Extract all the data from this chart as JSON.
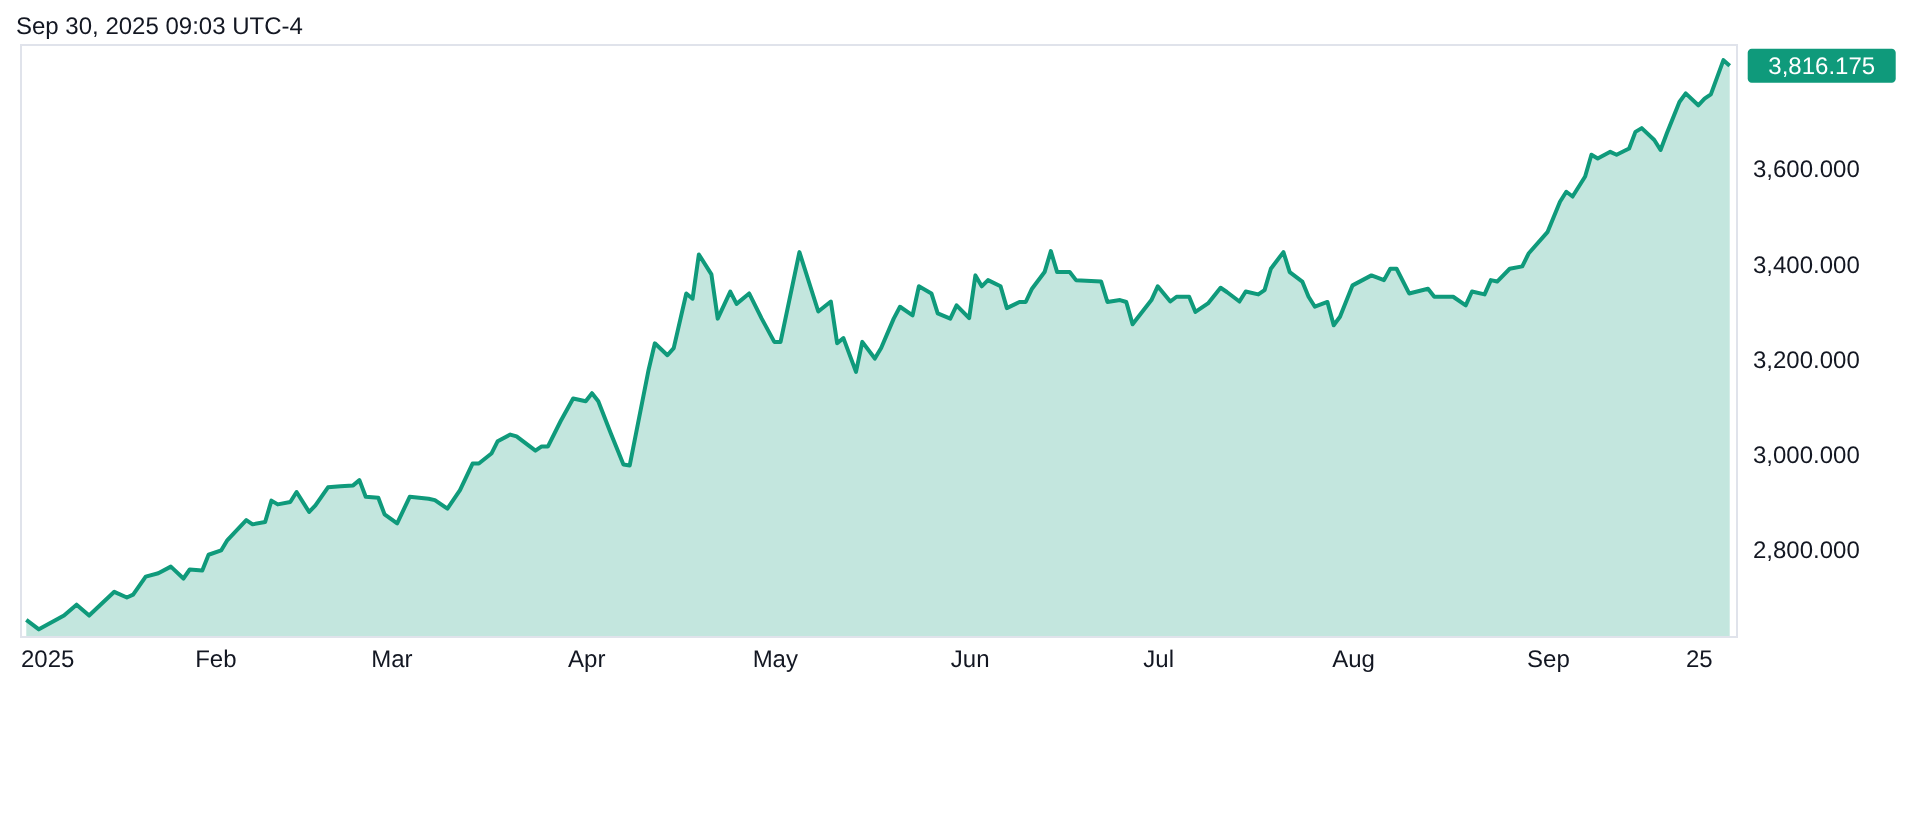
{
  "chart_data": {
    "type": "area",
    "annotations": [
      "Sep 30, 2025 09:03 UTC-4",
      {
        "text": "3,816.175",
        "x": "2025-09-30",
        "y": 3816.175
      }
    ],
    "x": [
      "2025-01-02",
      "2025-01-04",
      "2025-01-08",
      "2025-01-10",
      "2025-01-12",
      "2025-01-16",
      "2025-01-18",
      "2025-01-19",
      "2025-01-21",
      "2025-01-23",
      "2025-01-25",
      "2025-01-27",
      "2025-01-28",
      "2025-01-30",
      "2025-01-31",
      "2025-02-02",
      "2025-02-03",
      "2025-02-06",
      "2025-02-07",
      "2025-02-09",
      "2025-02-10",
      "2025-02-11",
      "2025-02-13",
      "2025-02-14",
      "2025-02-16",
      "2025-02-17",
      "2025-02-19",
      "2025-02-21",
      "2025-02-23",
      "2025-02-24",
      "2025-02-25",
      "2025-02-27",
      "2025-02-28",
      "2025-03-02",
      "2025-03-04",
      "2025-03-07",
      "2025-03-08",
      "2025-03-10",
      "2025-03-12",
      "2025-03-14",
      "2025-03-15",
      "2025-03-17",
      "2025-03-18",
      "2025-03-20",
      "2025-03-21",
      "2025-03-24",
      "2025-03-25",
      "2025-03-26",
      "2025-03-28",
      "2025-03-30",
      "2025-04-01",
      "2025-04-02",
      "2025-04-03",
      "2025-04-05",
      "2025-04-07",
      "2025-04-08",
      "2025-04-11",
      "2025-04-12",
      "2025-04-14",
      "2025-04-15",
      "2025-04-17",
      "2025-04-18",
      "2025-04-19",
      "2025-04-21",
      "2025-04-22",
      "2025-04-24",
      "2025-04-25",
      "2025-04-27",
      "2025-04-29",
      "2025-05-01",
      "2025-05-02",
      "2025-05-05",
      "2025-05-08",
      "2025-05-10",
      "2025-05-11",
      "2025-05-12",
      "2025-05-14",
      "2025-05-15",
      "2025-05-17",
      "2025-05-18",
      "2025-05-20",
      "2025-05-21",
      "2025-05-23",
      "2025-05-24",
      "2025-05-26",
      "2025-05-27",
      "2025-05-29",
      "2025-05-30",
      "2025-06-01",
      "2025-06-02",
      "2025-06-03",
      "2025-06-04",
      "2025-06-06",
      "2025-06-07",
      "2025-06-09",
      "2025-06-10",
      "2025-06-11",
      "2025-06-13",
      "2025-06-14",
      "2025-06-15",
      "2025-06-17",
      "2025-06-18",
      "2025-06-22",
      "2025-06-23",
      "2025-06-25",
      "2025-06-26",
      "2025-06-27",
      "2025-06-30",
      "2025-07-01",
      "2025-07-03",
      "2025-07-04",
      "2025-07-06",
      "2025-07-07",
      "2025-07-09",
      "2025-07-11",
      "2025-07-12",
      "2025-07-14",
      "2025-07-15",
      "2025-07-17",
      "2025-07-18",
      "2025-07-19",
      "2025-07-21",
      "2025-07-22",
      "2025-07-24",
      "2025-07-25",
      "2025-07-26",
      "2025-07-28",
      "2025-07-29",
      "2025-07-30",
      "2025-08-01",
      "2025-08-04",
      "2025-08-06",
      "2025-08-07",
      "2025-08-08",
      "2025-08-10",
      "2025-08-13",
      "2025-08-14",
      "2025-08-17",
      "2025-08-19",
      "2025-08-20",
      "2025-08-22",
      "2025-08-23",
      "2025-08-24",
      "2025-08-26",
      "2025-08-28",
      "2025-08-29",
      "2025-09-01",
      "2025-09-03",
      "2025-09-04",
      "2025-09-05",
      "2025-09-07",
      "2025-09-08",
      "2025-09-09",
      "2025-09-11",
      "2025-09-12",
      "2025-09-14",
      "2025-09-15",
      "2025-09-16",
      "2025-09-18",
      "2025-09-19",
      "2025-09-20",
      "2025-09-22",
      "2025-09-23",
      "2025-09-25",
      "2025-09-26",
      "2025-09-27",
      "2025-09-29",
      "2025-09-30"
    ],
    "series": [
      {
        "color": "#0f9a7b",
        "values": [
          2650,
          2630,
          2659,
          2682,
          2659,
          2709,
          2697,
          2703,
          2741,
          2748,
          2762,
          2737,
          2756,
          2754,
          2787,
          2796,
          2818,
          2860,
          2851,
          2856,
          2901,
          2893,
          2898,
          2919,
          2877,
          2891,
          2929,
          2931,
          2933,
          2944,
          2909,
          2907,
          2872,
          2853,
          2909,
          2905,
          2902,
          2884,
          2923,
          2979,
          2979,
          3000,
          3026,
          3040,
          3036,
          3006,
          3015,
          3015,
          3068,
          3116,
          3110,
          3127,
          3110,
          3042,
          2977,
          2975,
          3176,
          3232,
          3207,
          3222,
          3337,
          3326,
          3419,
          3377,
          3284,
          3341,
          3315,
          3337,
          3284,
          3235,
          3235,
          3424,
          3299,
          3320,
          3232,
          3243,
          3172,
          3235,
          3200,
          3222,
          3284,
          3309,
          3291,
          3352,
          3337,
          3295,
          3284,
          3312,
          3285,
          3375,
          3352,
          3365,
          3352,
          3306,
          3319,
          3319,
          3347,
          3382,
          3426,
          3382,
          3382,
          3365,
          3362,
          3319,
          3323,
          3319,
          3272,
          3323,
          3352,
          3320,
          3330,
          3330,
          3298,
          3316,
          3349,
          3340,
          3320,
          3341,
          3335,
          3344,
          3389,
          3424,
          3382,
          3362,
          3330,
          3309,
          3319,
          3270,
          3288,
          3354,
          3375,
          3365,
          3389,
          3389,
          3337,
          3347,
          3330,
          3330,
          3312,
          3341,
          3335,
          3365,
          3362,
          3389,
          3394,
          3421,
          3466,
          3530,
          3551,
          3541,
          3583,
          3629,
          3621,
          3635,
          3629,
          3642,
          3677,
          3685,
          3660,
          3639,
          3674,
          3740,
          3758,
          3733,
          3747,
          3756,
          3828,
          3816
        ]
      }
    ],
    "xlim": [
      "2025-01-01",
      "2025-10-01"
    ],
    "xticks": [
      {
        "value": "2025-01-01",
        "label": "2025"
      },
      {
        "value": "2025-02-01",
        "label": "Feb"
      },
      {
        "value": "2025-03-01",
        "label": "Mar"
      },
      {
        "value": "2025-04-01",
        "label": "Apr"
      },
      {
        "value": "2025-05-01",
        "label": "May"
      },
      {
        "value": "2025-06-01",
        "label": "Jun"
      },
      {
        "value": "2025-07-01",
        "label": "Jul"
      },
      {
        "value": "2025-08-01",
        "label": "Aug"
      },
      {
        "value": "2025-09-01",
        "label": "Sep"
      },
      {
        "value": "2025-09-25",
        "label": "25"
      }
    ],
    "ylim": [
      2616,
      3862
    ],
    "yticks": [
      {
        "value": 2800,
        "label": "2,800.000"
      },
      {
        "value": 3000,
        "label": "3,000.000"
      },
      {
        "value": 3200,
        "label": "3,200.000"
      },
      {
        "value": 3400,
        "label": "3,400.000"
      },
      {
        "value": 3600,
        "label": "3,600.000"
      }
    ],
    "grid": false
  }
}
